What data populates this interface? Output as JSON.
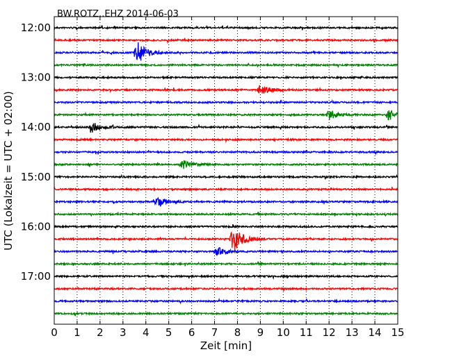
{
  "chart_data": {
    "type": "line",
    "title": "BW.ROTZ..EHZ 2014-06-03",
    "xlabel": "Zeit  [min]",
    "ylabel": "UTC (Lokalzeit = UTC + 02:00)",
    "xlim": [
      0,
      15
    ],
    "x_ticks": [
      0,
      1,
      2,
      3,
      4,
      5,
      6,
      7,
      8,
      9,
      10,
      11,
      12,
      13,
      14,
      15
    ],
    "x_grid": true,
    "y_tick_labels": [
      "12:00",
      "13:00",
      "14:00",
      "15:00",
      "16:00",
      "17:00"
    ],
    "trace_start_times": [
      "12:00",
      "12:15",
      "12:30",
      "12:45",
      "13:00",
      "13:15",
      "13:30",
      "13:45",
      "14:00",
      "14:15",
      "14:30",
      "14:45",
      "15:00",
      "15:15",
      "15:30",
      "15:45",
      "16:00",
      "16:15",
      "16:30",
      "16:45",
      "17:00",
      "17:15",
      "17:30",
      "17:45"
    ],
    "trace_color_cycle": [
      "#000000",
      "#ff0000",
      "#0000ff",
      "#008000"
    ],
    "events": [
      {
        "trace": "12:30",
        "minute": 3.6,
        "amplitude": 0.8
      },
      {
        "trace": "13:15",
        "minute": 9.0,
        "amplitude": 0.35
      },
      {
        "trace": "13:45",
        "minute": 12.0,
        "amplitude": 0.3
      },
      {
        "trace": "13:45",
        "minute": 14.6,
        "amplitude": 0.35
      },
      {
        "trace": "14:00",
        "minute": 1.6,
        "amplitude": 0.4
      },
      {
        "trace": "14:45",
        "minute": 5.6,
        "amplitude": 0.3
      },
      {
        "trace": "15:30",
        "minute": 4.5,
        "amplitude": 0.35
      },
      {
        "trace": "16:15",
        "minute": 7.8,
        "amplitude": 1.0
      },
      {
        "trace": "16:30",
        "minute": 7.1,
        "amplitude": 0.3
      }
    ]
  }
}
